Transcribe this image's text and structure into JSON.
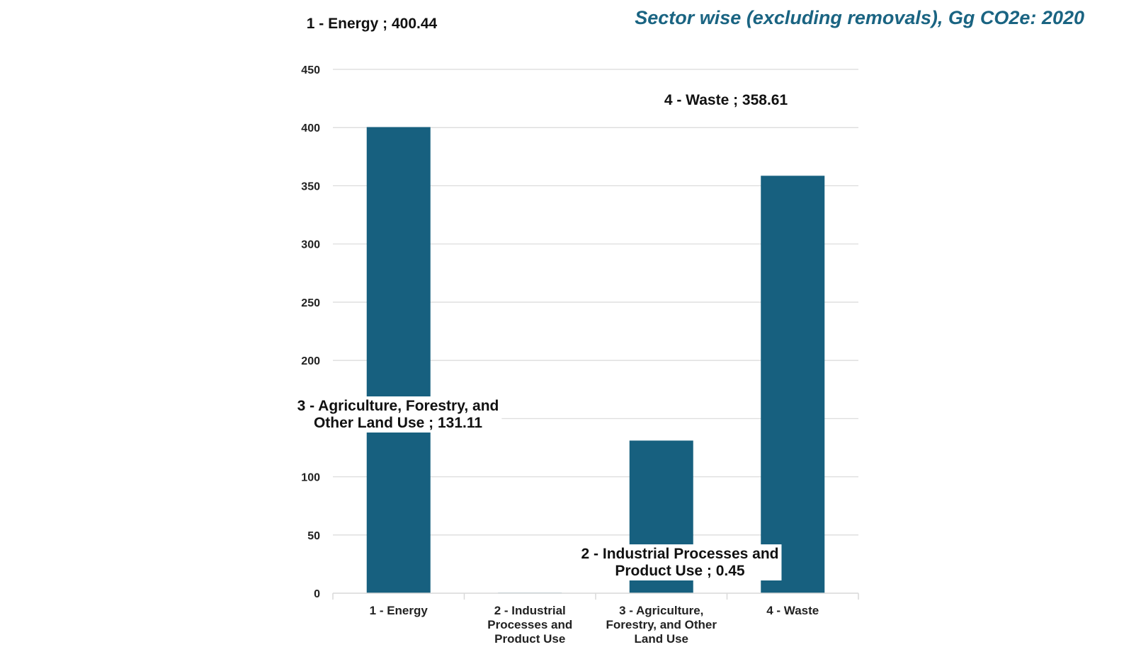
{
  "chart_data": {
    "type": "bar",
    "title": "Sector wise (excluding removals), Gg CO2e: 2020",
    "xlabel": "",
    "ylabel": "",
    "ylim": [
      0,
      450
    ],
    "yticks": [
      0,
      50,
      100,
      150,
      200,
      250,
      300,
      350,
      400,
      450
    ],
    "ytick_labels": [
      "0",
      "50",
      "100",
      "",
      "200",
      "250",
      "300",
      "350",
      "400",
      "450"
    ],
    "categories": [
      "1 - Energy",
      "2 - Industrial Processes and Product Use",
      "3 - Agriculture, Forestry, and Other Land Use",
      "4 - Waste"
    ],
    "category_label_lines": [
      [
        "1 - Energy"
      ],
      [
        "2 - Industrial",
        "Processes and",
        "Product Use"
      ],
      [
        "3 - Agriculture,",
        "Forestry, and Other",
        "Land Use"
      ],
      [
        "4 - Waste"
      ]
    ],
    "values": [
      400.44,
      0.45,
      131.11,
      358.61
    ],
    "data_labels": [
      [
        "1 - Energy ; 400.44"
      ],
      [
        "2 - Industrial Processes and",
        "Product Use ; 0.45"
      ],
      [
        "3 - Agriculture, Forestry, and",
        "Other Land Use ; 131.11"
      ],
      [
        "4 - Waste ; 358.61"
      ]
    ],
    "grid": true,
    "legend": "none",
    "bar_color": "#17607f",
    "grid_color": "#d9d9d9"
  }
}
